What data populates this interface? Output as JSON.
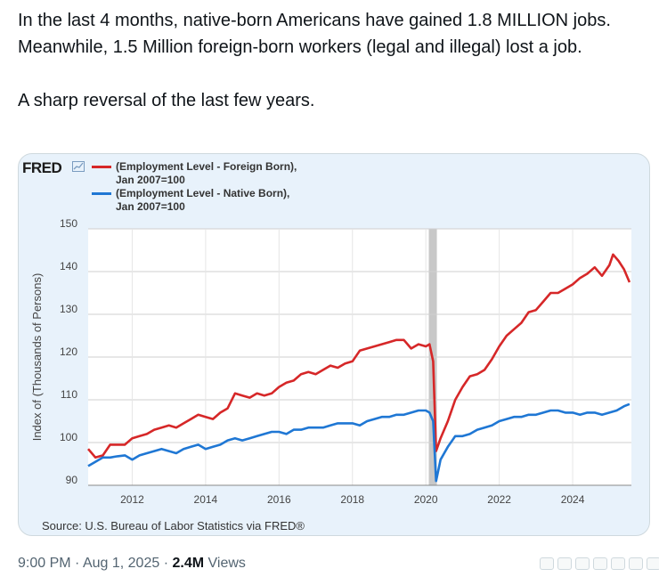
{
  "tweet": {
    "paragraph1": "In the last 4 months, native-born Americans have gained 1.8 MILLION jobs. Meanwhile, 1.5 Million foreign-born workers (legal and illegal) lost a job.",
    "paragraph2": "A sharp reversal of the last few years."
  },
  "meta": {
    "time": "9:00 PM",
    "separator": "·",
    "date": "Aug 1, 2025",
    "views_count": "2.4M",
    "views_label": "Views"
  },
  "card": {
    "logo": "FRED",
    "source": "Source: U.S. Bureau of Labor Statistics via FRED®"
  },
  "chart_data": {
    "type": "line",
    "ylabel": "Index of (Thousands of Persons)",
    "ylim": [
      90,
      150
    ],
    "yticks": [
      90,
      100,
      110,
      120,
      130,
      140,
      150
    ],
    "xlim": [
      2010.8,
      2025.6
    ],
    "xticks": [
      {
        "value": 2012,
        "label": "2012"
      },
      {
        "value": 2014,
        "label": "2014"
      },
      {
        "value": 2016,
        "label": "2016"
      },
      {
        "value": 2018,
        "label": "2018"
      },
      {
        "value": 2020,
        "label": "2020"
      },
      {
        "value": 2022,
        "label": "2022"
      },
      {
        "value": 2024,
        "label": "2024"
      }
    ],
    "recession": [
      2020.08,
      2020.3
    ],
    "grid": true,
    "legend_position": "top-left",
    "series": [
      {
        "name": "(Employment Level - Foreign Born),",
        "name_line2": "Jan 2007=100",
        "color": "#d62728",
        "points": [
          [
            2010.8,
            98.5
          ],
          [
            2011.0,
            96.5
          ],
          [
            2011.2,
            97
          ],
          [
            2011.4,
            99.5
          ],
          [
            2011.6,
            99.5
          ],
          [
            2011.8,
            99.5
          ],
          [
            2012.0,
            101
          ],
          [
            2012.2,
            101.5
          ],
          [
            2012.4,
            102
          ],
          [
            2012.6,
            103
          ],
          [
            2012.8,
            103.5
          ],
          [
            2013.0,
            104
          ],
          [
            2013.2,
            103.5
          ],
          [
            2013.4,
            104.5
          ],
          [
            2013.6,
            105.5
          ],
          [
            2013.8,
            106.5
          ],
          [
            2014.0,
            106
          ],
          [
            2014.2,
            105.5
          ],
          [
            2014.4,
            107
          ],
          [
            2014.6,
            108
          ],
          [
            2014.8,
            111.5
          ],
          [
            2015.0,
            111
          ],
          [
            2015.2,
            110.5
          ],
          [
            2015.4,
            111.5
          ],
          [
            2015.6,
            111
          ],
          [
            2015.8,
            111.5
          ],
          [
            2016.0,
            113
          ],
          [
            2016.2,
            114
          ],
          [
            2016.4,
            114.5
          ],
          [
            2016.6,
            116
          ],
          [
            2016.8,
            116.5
          ],
          [
            2017.0,
            116
          ],
          [
            2017.2,
            117
          ],
          [
            2017.4,
            118
          ],
          [
            2017.6,
            117.5
          ],
          [
            2017.8,
            118.5
          ],
          [
            2018.0,
            119
          ],
          [
            2018.2,
            121.5
          ],
          [
            2018.4,
            122
          ],
          [
            2018.6,
            122.5
          ],
          [
            2018.8,
            123
          ],
          [
            2019.0,
            123.5
          ],
          [
            2019.2,
            124
          ],
          [
            2019.4,
            124
          ],
          [
            2019.6,
            122
          ],
          [
            2019.8,
            123
          ],
          [
            2020.0,
            122.5
          ],
          [
            2020.1,
            123
          ],
          [
            2020.2,
            119
          ],
          [
            2020.28,
            98
          ],
          [
            2020.4,
            101
          ],
          [
            2020.6,
            105
          ],
          [
            2020.8,
            110
          ],
          [
            2021.0,
            113
          ],
          [
            2021.2,
            115.5
          ],
          [
            2021.4,
            116
          ],
          [
            2021.6,
            117
          ],
          [
            2021.8,
            119.5
          ],
          [
            2022.0,
            122.5
          ],
          [
            2022.2,
            125
          ],
          [
            2022.4,
            126.5
          ],
          [
            2022.6,
            128
          ],
          [
            2022.8,
            130.5
          ],
          [
            2023.0,
            131
          ],
          [
            2023.2,
            133
          ],
          [
            2023.4,
            135
          ],
          [
            2023.6,
            135
          ],
          [
            2023.8,
            136
          ],
          [
            2024.0,
            137
          ],
          [
            2024.2,
            138.5
          ],
          [
            2024.4,
            139.5
          ],
          [
            2024.6,
            141
          ],
          [
            2024.8,
            139
          ],
          [
            2025.0,
            141.5
          ],
          [
            2025.1,
            144
          ],
          [
            2025.25,
            142.5
          ],
          [
            2025.4,
            140.5
          ],
          [
            2025.55,
            137.5
          ]
        ]
      },
      {
        "name": "(Employment Level - Native Born),",
        "name_line2": "Jan 2007=100",
        "color": "#1f77d4",
        "points": [
          [
            2010.8,
            94.5
          ],
          [
            2011.0,
            95.5
          ],
          [
            2011.2,
            96.5
          ],
          [
            2011.4,
            96.5
          ],
          [
            2011.6,
            96.8
          ],
          [
            2011.8,
            97
          ],
          [
            2012.0,
            96
          ],
          [
            2012.2,
            97
          ],
          [
            2012.4,
            97.5
          ],
          [
            2012.6,
            98
          ],
          [
            2012.8,
            98.5
          ],
          [
            2013.0,
            98
          ],
          [
            2013.2,
            97.5
          ],
          [
            2013.4,
            98.5
          ],
          [
            2013.6,
            99
          ],
          [
            2013.8,
            99.5
          ],
          [
            2014.0,
            98.5
          ],
          [
            2014.2,
            99
          ],
          [
            2014.4,
            99.5
          ],
          [
            2014.6,
            100.5
          ],
          [
            2014.8,
            101
          ],
          [
            2015.0,
            100.5
          ],
          [
            2015.2,
            101
          ],
          [
            2015.4,
            101.5
          ],
          [
            2015.6,
            102
          ],
          [
            2015.8,
            102.5
          ],
          [
            2016.0,
            102.5
          ],
          [
            2016.2,
            102
          ],
          [
            2016.4,
            103
          ],
          [
            2016.6,
            103
          ],
          [
            2016.8,
            103.5
          ],
          [
            2017.0,
            103.5
          ],
          [
            2017.2,
            103.5
          ],
          [
            2017.4,
            104
          ],
          [
            2017.6,
            104.5
          ],
          [
            2017.8,
            104.5
          ],
          [
            2018.0,
            104.5
          ],
          [
            2018.2,
            104
          ],
          [
            2018.4,
            105
          ],
          [
            2018.6,
            105.5
          ],
          [
            2018.8,
            106
          ],
          [
            2019.0,
            106
          ],
          [
            2019.2,
            106.5
          ],
          [
            2019.4,
            106.5
          ],
          [
            2019.6,
            107
          ],
          [
            2019.8,
            107.5
          ],
          [
            2020.0,
            107.5
          ],
          [
            2020.1,
            107
          ],
          [
            2020.2,
            105
          ],
          [
            2020.28,
            91
          ],
          [
            2020.4,
            96
          ],
          [
            2020.6,
            99
          ],
          [
            2020.8,
            101.5
          ],
          [
            2021.0,
            101.5
          ],
          [
            2021.2,
            102
          ],
          [
            2021.4,
            103
          ],
          [
            2021.6,
            103.5
          ],
          [
            2021.8,
            104
          ],
          [
            2022.0,
            105
          ],
          [
            2022.2,
            105.5
          ],
          [
            2022.4,
            106
          ],
          [
            2022.6,
            106
          ],
          [
            2022.8,
            106.5
          ],
          [
            2023.0,
            106.5
          ],
          [
            2023.2,
            107
          ],
          [
            2023.4,
            107.5
          ],
          [
            2023.6,
            107.5
          ],
          [
            2023.8,
            107
          ],
          [
            2024.0,
            107
          ],
          [
            2024.2,
            106.5
          ],
          [
            2024.4,
            107
          ],
          [
            2024.6,
            107
          ],
          [
            2024.8,
            106.5
          ],
          [
            2025.0,
            107
          ],
          [
            2025.2,
            107.5
          ],
          [
            2025.4,
            108.5
          ],
          [
            2025.55,
            109
          ]
        ]
      }
    ]
  }
}
